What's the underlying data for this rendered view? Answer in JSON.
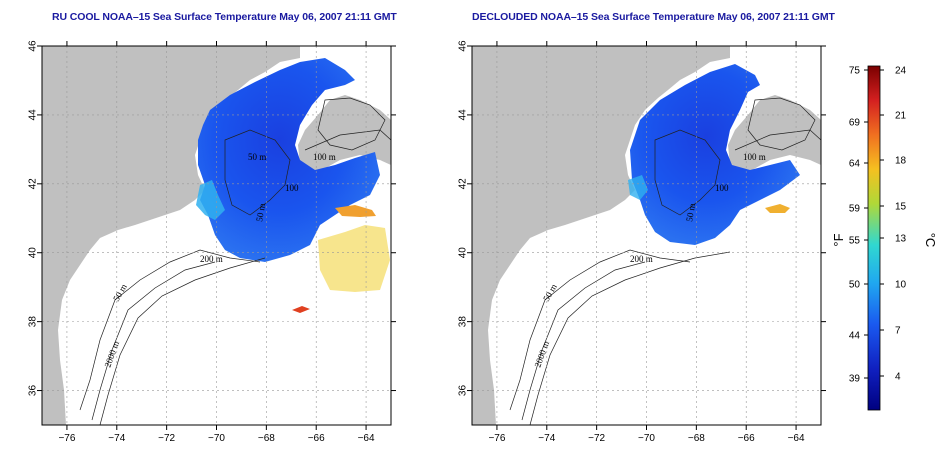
{
  "maps": [
    {
      "title": "RU COOL NOAA–15 Sea Surface Temperature May 06, 2007 21:11 GMT",
      "contour_labels": [
        "100 m",
        "200 m",
        "50 m",
        "2000 m",
        "100",
        "50 m",
        "50 m"
      ]
    },
    {
      "title": "DECLOUDED NOAA–15 Sea Surface Temperature May 06, 2007 21:11 GMT",
      "contour_labels": [
        "100 m",
        "200 m",
        "50 m",
        "2000 m",
        "100",
        "50 m"
      ]
    }
  ],
  "axes": {
    "x_ticks": [
      "−76",
      "−74",
      "−72",
      "−70",
      "−68",
      "−66",
      "−64"
    ],
    "y_ticks": [
      "46",
      "44",
      "42",
      "40",
      "38",
      "36"
    ],
    "x_range": [
      -77,
      -63
    ],
    "y_range": [
      35,
      46
    ]
  },
  "colorbar": {
    "fahrenheit_ticks": [
      "75",
      "69",
      "64",
      "59",
      "55",
      "50",
      "44",
      "39"
    ],
    "celsius_ticks": [
      "24",
      "21",
      "18",
      "15",
      "13",
      "10",
      "7",
      "4"
    ],
    "fahrenheit_unit": "°F",
    "celsius_unit": "°C",
    "colors": [
      "#7a0000",
      "#d42020",
      "#f07020",
      "#f5c020",
      "#b0d838",
      "#30d8d0",
      "#20a8f0",
      "#1a5af0",
      "#1020c0",
      "#000080"
    ]
  },
  "colors": {
    "land": "#c0c0c0",
    "sst_cold": "#1a4fe8",
    "sst_mid": "#30b0f0",
    "sst_warm": "#f0d030",
    "title": "#1a1aa0"
  }
}
